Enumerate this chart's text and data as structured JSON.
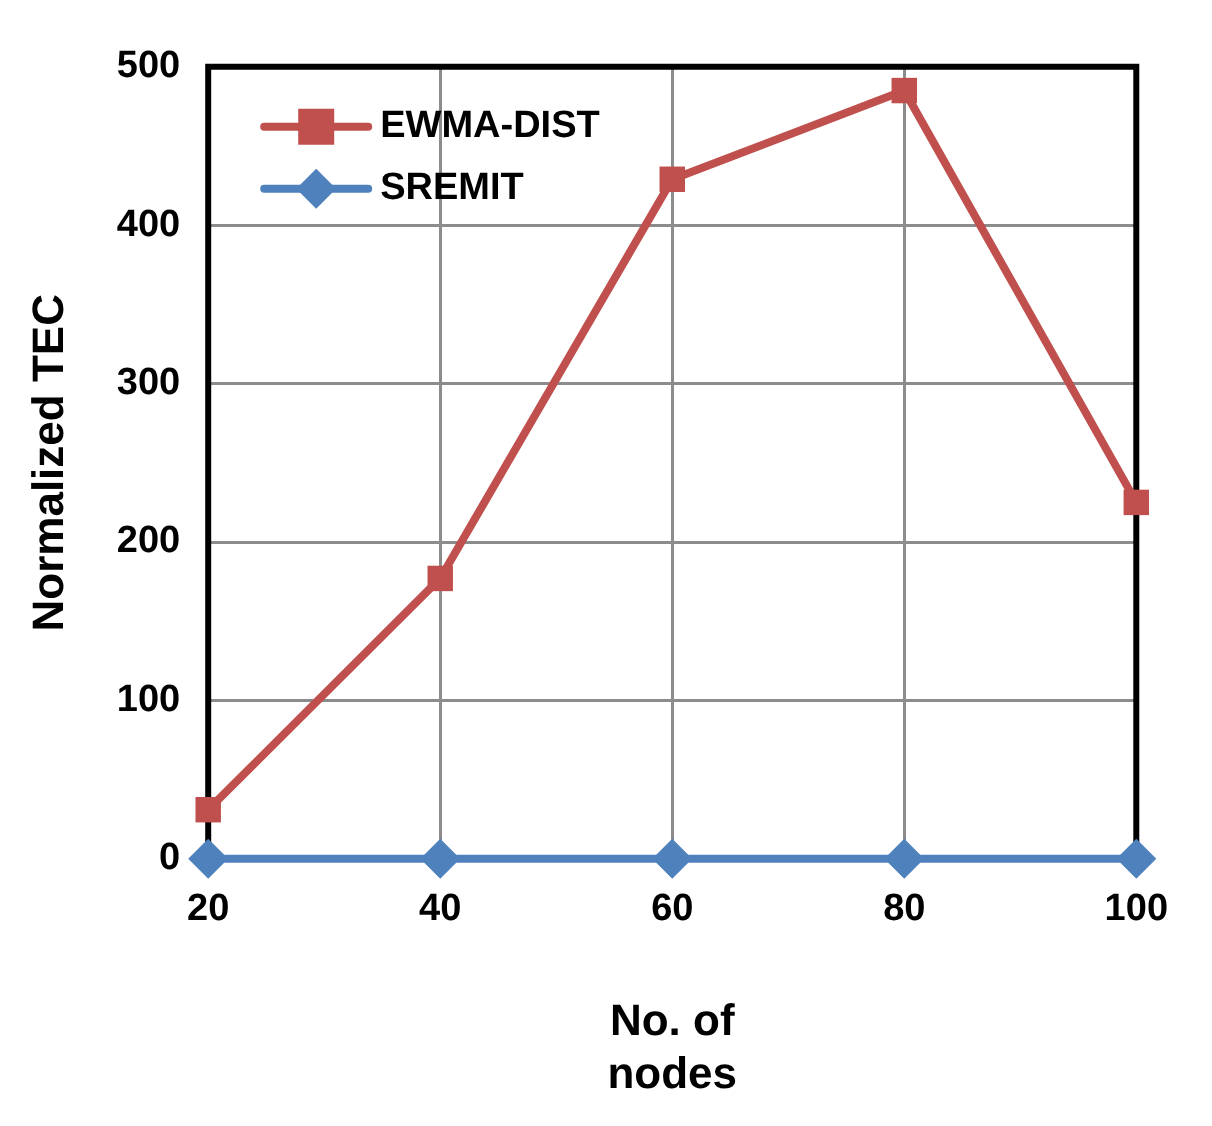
{
  "chart_data": {
    "type": "line",
    "xlabel": "No. of nodes",
    "ylabel": "Normalized TEC",
    "x": [
      20,
      40,
      60,
      80,
      100
    ],
    "series": [
      {
        "name": "EWMA-DIST",
        "color": "#c0504d",
        "values": [
          31,
          177,
          429,
          485,
          225
        ],
        "marker": "square"
      },
      {
        "name": "SREMIT",
        "color": "#4f81bd",
        "values": [
          0,
          0,
          0,
          0,
          0
        ],
        "marker": "diamond"
      }
    ],
    "xlim": [
      20,
      100
    ],
    "xticks": [
      20,
      40,
      60,
      80,
      100
    ],
    "ylim": [
      0,
      500
    ],
    "yticks": [
      0,
      100,
      200,
      300,
      400,
      500
    ],
    "grid": true,
    "legend": "top left",
    "line_style": "solid"
  }
}
